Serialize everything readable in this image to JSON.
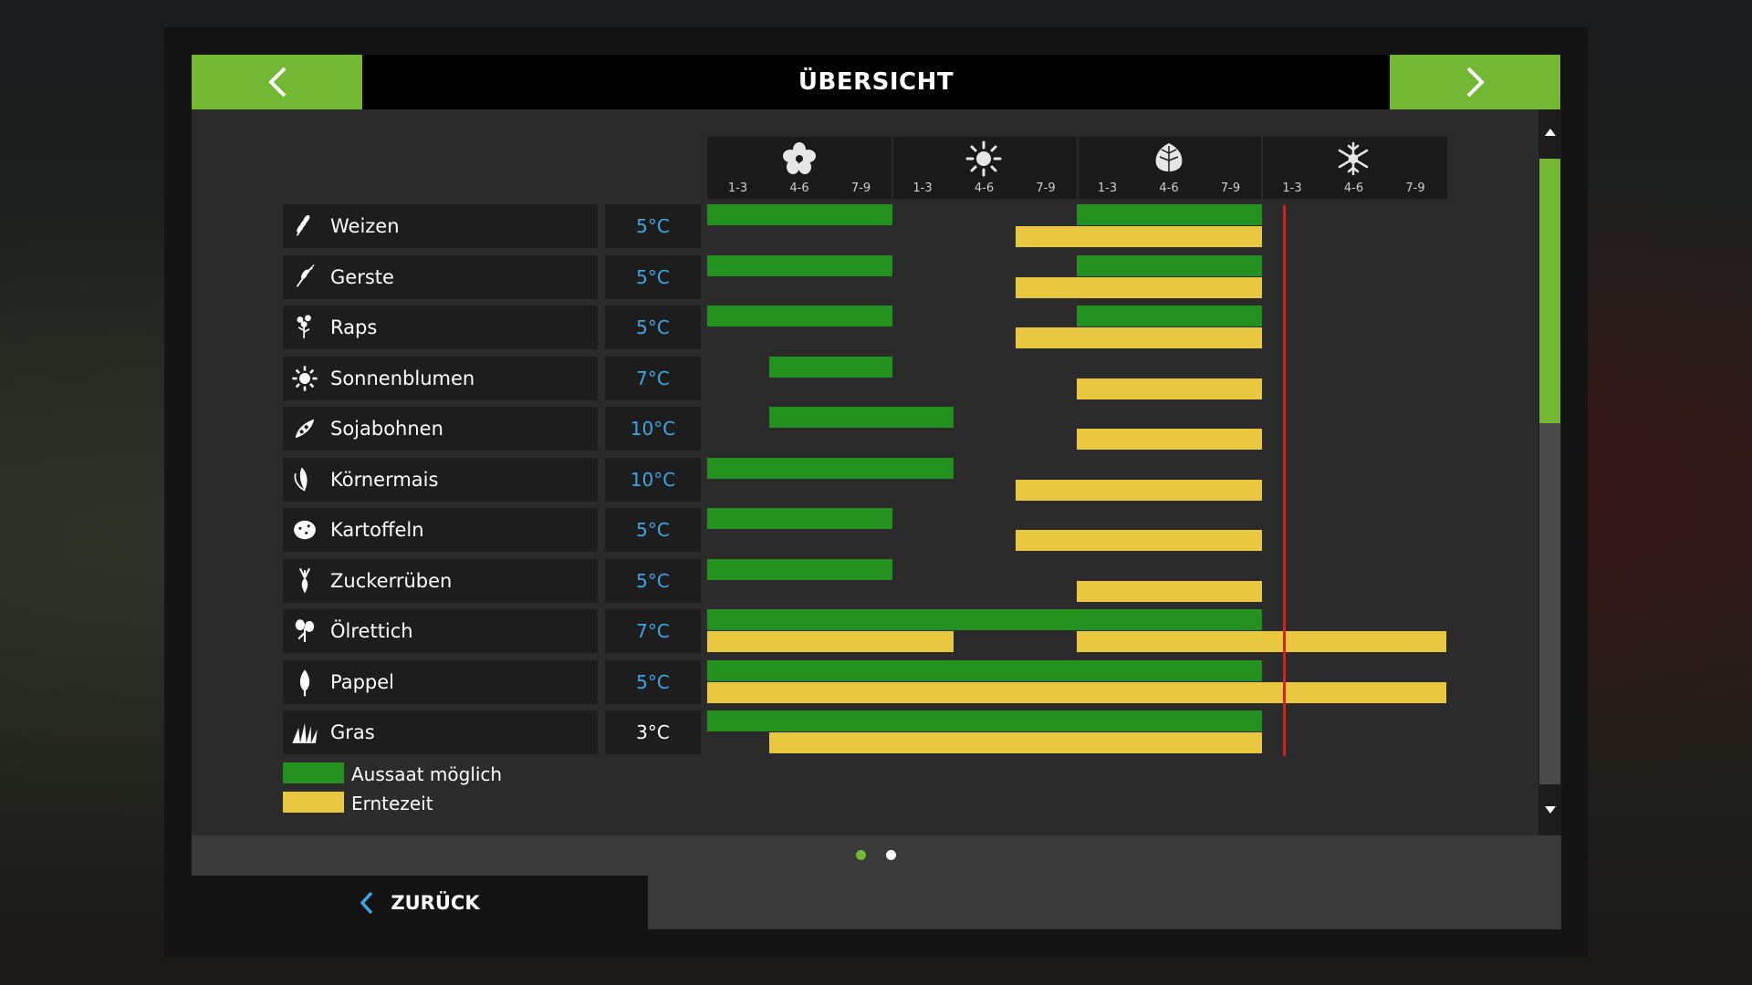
{
  "header": {
    "title": "ÜBERSICHT"
  },
  "seasons": [
    {
      "name": "spring",
      "icon": "hibiscus-flower-icon"
    },
    {
      "name": "summer",
      "icon": "sun-icon"
    },
    {
      "name": "autumn",
      "icon": "leaf-icon"
    },
    {
      "name": "winter",
      "icon": "snowflake-icon"
    }
  ],
  "month_labels": [
    "1-3",
    "4-6",
    "7-9",
    "1-3",
    "4-6",
    "7-9",
    "1-3",
    "4-6",
    "7-9",
    "1-3",
    "4-6",
    "7-9"
  ],
  "crops": [
    {
      "name": "Weizen",
      "temp": "5°C",
      "temp_color": "#3aa7e6",
      "icon": "wheat-icon",
      "sow": [
        [
          0,
          3
        ],
        [
          6,
          9
        ]
      ],
      "harvest": [
        [
          5,
          9
        ]
      ]
    },
    {
      "name": "Gerste",
      "temp": "5°C",
      "temp_color": "#3aa7e6",
      "icon": "barley-icon",
      "sow": [
        [
          0,
          3
        ],
        [
          6,
          9
        ]
      ],
      "harvest": [
        [
          5,
          9
        ]
      ]
    },
    {
      "name": "Raps",
      "temp": "5°C",
      "temp_color": "#3aa7e6",
      "icon": "canola-icon",
      "sow": [
        [
          0,
          3
        ],
        [
          6,
          9
        ]
      ],
      "harvest": [
        [
          5,
          9
        ]
      ]
    },
    {
      "name": "Sonnenblumen",
      "temp": "7°C",
      "temp_color": "#3aa7e6",
      "icon": "sunflower-icon",
      "sow": [
        [
          1,
          3
        ]
      ],
      "harvest": [
        [
          6,
          9
        ]
      ]
    },
    {
      "name": "Sojabohnen",
      "temp": "10°C",
      "temp_color": "#3aa7e6",
      "icon": "soybean-icon",
      "sow": [
        [
          1,
          4
        ]
      ],
      "harvest": [
        [
          6,
          9
        ]
      ]
    },
    {
      "name": "Körnermais",
      "temp": "10°C",
      "temp_color": "#3aa7e6",
      "icon": "corn-icon",
      "sow": [
        [
          0,
          4
        ]
      ],
      "harvest": [
        [
          5,
          9
        ]
      ]
    },
    {
      "name": "Kartoffeln",
      "temp": "5°C",
      "temp_color": "#3aa7e6",
      "icon": "potato-icon",
      "sow": [
        [
          0,
          3
        ]
      ],
      "harvest": [
        [
          5,
          9
        ]
      ]
    },
    {
      "name": "Zuckerrüben",
      "temp": "5°C",
      "temp_color": "#3aa7e6",
      "icon": "sugarbeet-icon",
      "sow": [
        [
          0,
          3
        ]
      ],
      "harvest": [
        [
          6,
          9
        ]
      ]
    },
    {
      "name": "Ölrettich",
      "temp": "7°C",
      "temp_color": "#3aa7e6",
      "icon": "oilradish-icon",
      "sow": [
        [
          0,
          9
        ]
      ],
      "harvest": [
        [
          0,
          4
        ],
        [
          6,
          12
        ]
      ]
    },
    {
      "name": "Pappel",
      "temp": "5°C",
      "temp_color": "#3aa7e6",
      "icon": "poplar-icon",
      "sow": [
        [
          0,
          9
        ]
      ],
      "harvest": [
        [
          0,
          12
        ]
      ]
    },
    {
      "name": "Gras",
      "temp": "3°C",
      "temp_color": "#ffffff",
      "icon": "grass-icon",
      "sow": [
        [
          0,
          9
        ]
      ],
      "harvest": [
        [
          1,
          9
        ]
      ]
    }
  ],
  "current_period": 9.35,
  "legend": {
    "sow_label": "Aussaat möglich",
    "harvest_label": "Erntezeit",
    "sow_color": "#23911d",
    "harvest_color": "#e9c840"
  },
  "pagination": {
    "active": 0,
    "count": 2,
    "active_color": "#72b833",
    "inactive_color": "#ffffff"
  },
  "footer": {
    "back_label": "ZURÜCK"
  },
  "colors": {
    "accent": "#72b833",
    "back_arrow": "#3aa7e6"
  }
}
